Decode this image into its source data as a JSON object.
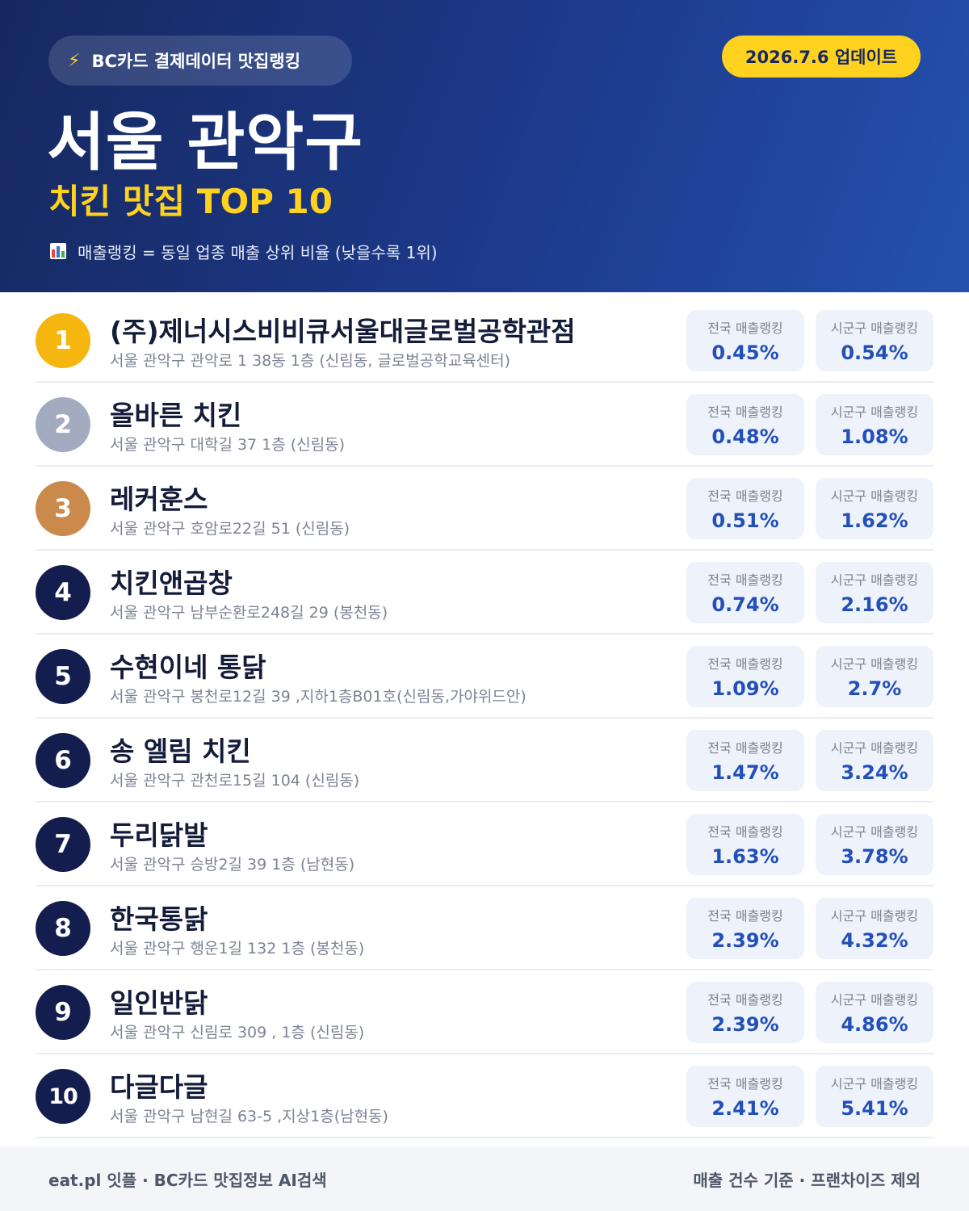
{
  "header": {
    "source_icon": "lightning-icon",
    "source_label": "BC카드 결제데이터 맛집랭킹",
    "update_label": "2026.7.6 업데이트",
    "title": "서울 관악구",
    "subtitle": "치킨 맛집 TOP 10",
    "note_icon": "bar-chart-icon",
    "note": "매출랭킹 = 동일 업종 매출 상위 비율 (낮을수록 1위)"
  },
  "labels": {
    "national": "전국 매출랭킹",
    "local": "시군구 매출랭킹"
  },
  "colors": {
    "accent_yellow": "#ffd21f",
    "header_navy": "#16285f",
    "header_blue": "#2451ae",
    "rank_gold": "#f5b70f",
    "rank_silver": "#a2abbf",
    "rank_bronze": "#c98a4c",
    "rank_default": "#141e4e",
    "value_blue": "#2350b8"
  },
  "restaurants": [
    {
      "rank": "1",
      "name": "(주)제너시스비비큐서울대글로벌공학관점",
      "address": "서울 관악구 관악로 1 38동 1층 (신림동, 글로벌공학교육센터)",
      "national": "0.45%",
      "local": "0.54%"
    },
    {
      "rank": "2",
      "name": "올바른 치킨",
      "address": "서울 관악구 대학길 37 1층 (신림동)",
      "national": "0.48%",
      "local": "1.08%"
    },
    {
      "rank": "3",
      "name": "레커훈스",
      "address": "서울 관악구 호암로22길 51 (신림동)",
      "national": "0.51%",
      "local": "1.62%"
    },
    {
      "rank": "4",
      "name": "치킨앤곱창",
      "address": "서울 관악구 남부순환로248길 29 (봉천동)",
      "national": "0.74%",
      "local": "2.16%"
    },
    {
      "rank": "5",
      "name": "수현이네 통닭",
      "address": "서울 관악구 봉천로12길 39 ,지하1층B01호(신림동,가야위드안)",
      "national": "1.09%",
      "local": "2.7%"
    },
    {
      "rank": "6",
      "name": "송 엘림 치킨",
      "address": "서울 관악구 관천로15길 104 (신림동)",
      "national": "1.47%",
      "local": "3.24%"
    },
    {
      "rank": "7",
      "name": "두리닭발",
      "address": "서울 관악구 승방2길 39 1층 (남현동)",
      "national": "1.63%",
      "local": "3.78%"
    },
    {
      "rank": "8",
      "name": "한국통닭",
      "address": "서울 관악구 행운1길 132 1층 (봉천동)",
      "national": "2.39%",
      "local": "4.32%"
    },
    {
      "rank": "9",
      "name": "일인반닭",
      "address": "서울 관악구 신림로 309 , 1층 (신림동)",
      "national": "2.39%",
      "local": "4.86%"
    },
    {
      "rank": "10",
      "name": "다글다글",
      "address": "서울 관악구 남현길 63-5 ,지상1층(남현동)",
      "national": "2.41%",
      "local": "5.41%"
    }
  ],
  "footer": {
    "left": "eat.pl 잇플 · BC카드 맛집정보 AI검색",
    "right": "매출 건수 기준 · 프랜차이즈 제외"
  }
}
